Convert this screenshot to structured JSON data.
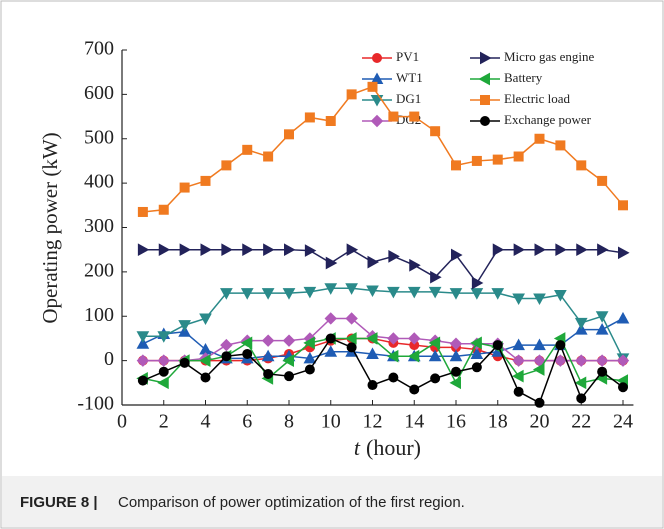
{
  "chart_data": {
    "type": "line",
    "ylabel": "Operating power (kW)",
    "xlabel_var": "t",
    "xlabel_unit": "(hour)",
    "caption_label": "FIGURE 8 |",
    "caption": "Comparison of power optimization of the first region.",
    "x": [
      1,
      2,
      3,
      4,
      5,
      6,
      7,
      8,
      9,
      10,
      11,
      12,
      13,
      14,
      15,
      16,
      17,
      18,
      19,
      20,
      21,
      22,
      23,
      24
    ],
    "xlim": [
      0,
      24.5
    ],
    "xticks": [
      0,
      2,
      4,
      6,
      8,
      10,
      12,
      14,
      16,
      18,
      20,
      22,
      24
    ],
    "ylim": [
      -100,
      700
    ],
    "yticks": [
      -100,
      0,
      100,
      200,
      300,
      400,
      500,
      600,
      700
    ],
    "series": [
      {
        "name": "PV1",
        "color": "#e8282a",
        "marker": "circle",
        "values": [
          0,
          0,
          0,
          0,
          0,
          0,
          5,
          15,
          30,
          45,
          50,
          50,
          40,
          35,
          30,
          30,
          25,
          10,
          0,
          0,
          0,
          0,
          0,
          0
        ]
      },
      {
        "name": "WT1",
        "color": "#1f5cb4",
        "marker": "triangle-up",
        "values": [
          38,
          60,
          65,
          25,
          5,
          5,
          10,
          10,
          5,
          20,
          20,
          15,
          10,
          10,
          10,
          10,
          15,
          20,
          35,
          35,
          35,
          70,
          70,
          95
        ]
      },
      {
        "name": "DG1",
        "color": "#2a8a8a",
        "marker": "triangle-down",
        "values": [
          55,
          55,
          80,
          95,
          152,
          152,
          152,
          152,
          155,
          163,
          163,
          158,
          155,
          155,
          155,
          152,
          152,
          152,
          140,
          140,
          148,
          85,
          100,
          5
        ]
      },
      {
        "name": "DG2",
        "color": "#b05ab8",
        "marker": "diamond",
        "values": [
          0,
          0,
          0,
          5,
          35,
          45,
          45,
          45,
          50,
          95,
          95,
          55,
          50,
          50,
          45,
          38,
          38,
          38,
          0,
          0,
          0,
          0,
          0,
          0
        ]
      },
      {
        "name": "Micro gas engine",
        "color": "#23235a",
        "marker": "triangle-right",
        "values": [
          250,
          250,
          250,
          250,
          250,
          250,
          250,
          250,
          248,
          220,
          250,
          222,
          235,
          215,
          188,
          238,
          175,
          250,
          250,
          250,
          250,
          250,
          250,
          243
        ]
      },
      {
        "name": "Battery",
        "color": "#1fa83a",
        "marker": "triangle-left",
        "values": [
          -40,
          -50,
          0,
          0,
          10,
          40,
          -40,
          0,
          40,
          50,
          50,
          50,
          10,
          10,
          40,
          -50,
          40,
          30,
          -35,
          -20,
          50,
          -50,
          -40,
          -45
        ]
      },
      {
        "name": "Electric load",
        "color": "#f07a20",
        "marker": "square",
        "values": [
          335,
          340,
          390,
          405,
          440,
          475,
          460,
          510,
          548,
          540,
          600,
          617,
          550,
          550,
          517,
          440,
          450,
          453,
          460,
          500,
          485,
          440,
          405,
          350
        ]
      },
      {
        "name": "Exchange power",
        "color": "#000000",
        "marker": "circle",
        "values": [
          -45,
          -25,
          -5,
          -38,
          10,
          15,
          -30,
          -35,
          -20,
          50,
          30,
          -55,
          -38,
          -65,
          -40,
          -25,
          -15,
          35,
          -70,
          -95,
          35,
          -85,
          -25,
          -60
        ]
      }
    ]
  }
}
